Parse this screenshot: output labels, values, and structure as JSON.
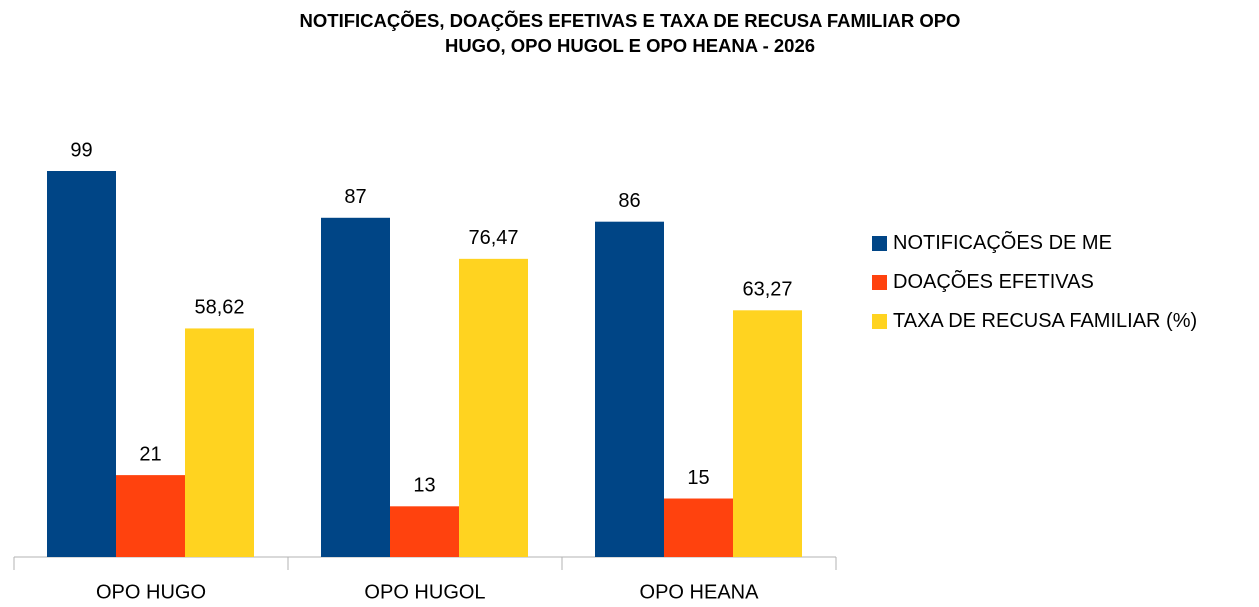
{
  "chart_data": {
    "type": "bar",
    "title": [
      "NOTIFICAÇÕES, DOAÇÕES EFETIVAS E TAXA DE RECUSA FAMILIAR OPO",
      "HUGO, OPO HUGOL E OPO HEANA - 2026"
    ],
    "categories": [
      "OPO HUGO",
      "OPO HUGOL",
      "OPO HEANA"
    ],
    "series": [
      {
        "name": "NOTIFICAÇÕES DE ME",
        "color": "#004586",
        "values": [
          99,
          87,
          86
        ]
      },
      {
        "name": "DOAÇÕES EFETIVAS",
        "color": "#ff420e",
        "values": [
          21,
          13,
          15
        ]
      },
      {
        "name": "TAXA DE RECUSA FAMILIAR (%)",
        "color": "#ffd320",
        "values": [
          58.62,
          76.47,
          63.27
        ],
        "value_labels": [
          "58,62",
          "76,47",
          "63,27"
        ]
      }
    ],
    "legend": "right"
  }
}
